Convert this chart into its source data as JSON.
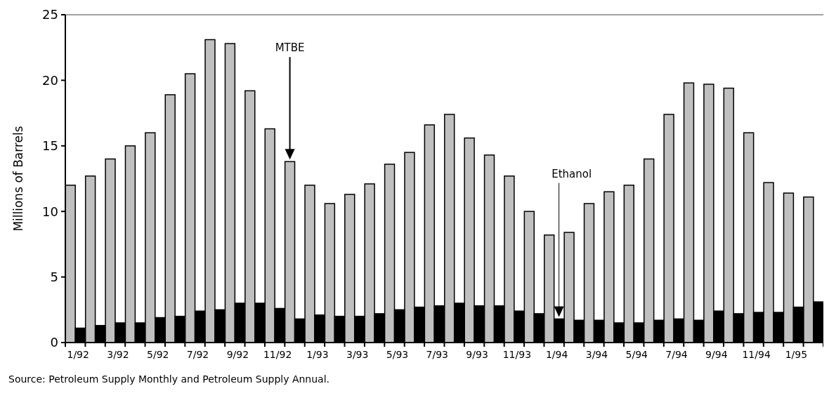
{
  "chart_data": {
    "type": "bar",
    "ylabel": "Millions of Barrels",
    "categories": [
      "1/92",
      null,
      "3/92",
      null,
      "5/92",
      null,
      "7/92",
      null,
      "9/92",
      null,
      "11/92",
      null,
      "1/93",
      null,
      "3/93",
      null,
      "5/93",
      null,
      "7/93",
      null,
      "9/93",
      null,
      "11/93",
      null,
      "1/94",
      null,
      "3/94",
      null,
      "5/94",
      null,
      "7/94",
      null,
      "9/94",
      null,
      "11/94",
      null,
      "1/95",
      null
    ],
    "series": [
      {
        "color": "#c0c0c0",
        "values": [
          12,
          12.7,
          14,
          15,
          16,
          18.9,
          20.5,
          23.1,
          22.8,
          19.2,
          16.3,
          13.8,
          12,
          10.6,
          11.3,
          12.1,
          13.6,
          14.5,
          16.6,
          17.4,
          15.6,
          14.3,
          12.7,
          10,
          8.2,
          8.4,
          10.6,
          11.5,
          12,
          14,
          17.4,
          19.8,
          19.7,
          19.4,
          16,
          12.2,
          11.4,
          11.1
        ]
      },
      {
        "color": "#000000",
        "values": [
          1.1,
          1.3,
          1.5,
          1.5,
          1.9,
          2,
          2.4,
          2.5,
          3,
          3,
          2.6,
          1.8,
          2.1,
          2,
          2,
          2.2,
          2.5,
          2.7,
          2.8,
          3,
          2.8,
          2.8,
          2.4,
          2.2,
          1.8,
          1.7,
          1.7,
          1.5,
          1.5,
          1.7,
          1.8,
          1.7,
          2.4,
          2.2,
          2.3,
          2.3,
          2.7,
          3.1
        ]
      }
    ],
    "ylim": [
      0,
      25
    ],
    "yticks": [
      0,
      5,
      10,
      15,
      20,
      25
    ],
    "grid": false,
    "annotations": [
      "MTBE",
      "Ethanol",
      "Source: Petroleum Supply Monthly and Petroleum Supply Annual."
    ]
  }
}
